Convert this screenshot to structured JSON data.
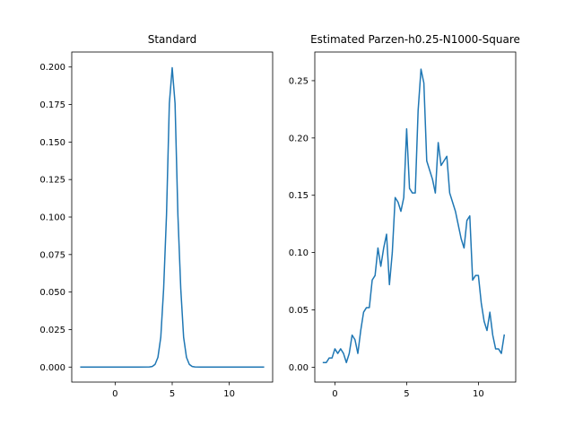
{
  "colors": {
    "line": "#1f77b4",
    "axes": "#000000",
    "background": "#ffffff"
  },
  "chart_data": [
    {
      "type": "line",
      "title": "Standard",
      "xlabel": "",
      "ylabel": "",
      "xlim": [
        -3.8,
        13.8
      ],
      "ylim": [
        -0.01,
        0.21
      ],
      "xticks": [
        0,
        5,
        10
      ],
      "xtick_labels": [
        "0",
        "5",
        "10"
      ],
      "yticks": [
        0.0,
        0.025,
        0.05,
        0.075,
        0.1,
        0.125,
        0.15,
        0.175,
        0.2
      ],
      "ytick_labels": [
        "0.000",
        "0.025",
        "0.050",
        "0.075",
        "0.100",
        "0.125",
        "0.150",
        "0.175",
        "0.200"
      ],
      "grid": false,
      "series": [
        {
          "x": [
            -3,
            -2,
            -1,
            0,
            1,
            2,
            3,
            3.25,
            3.5,
            3.75,
            4,
            4.25,
            4.5,
            4.75,
            5,
            5.25,
            5.5,
            5.75,
            6,
            6.25,
            6.5,
            6.75,
            7,
            7.5,
            8,
            9,
            10,
            11,
            12,
            13
          ],
          "y": [
            0,
            0,
            0,
            0,
            0,
            0,
            0.0001,
            0.0004,
            0.0018,
            0.0065,
            0.0199,
            0.0522,
            0.1013,
            0.1757,
            0.1995,
            0.1757,
            0.1013,
            0.0522,
            0.0199,
            0.0065,
            0.0018,
            0.0004,
            0.0001,
            0,
            0,
            0,
            0,
            0,
            0,
            0
          ]
        }
      ]
    },
    {
      "type": "line",
      "title": "Estimated Parzen-h0.25-N1000-Square",
      "xlabel": "",
      "ylabel": "",
      "xlim": [
        -1.4,
        12.6
      ],
      "ylim": [
        -0.013,
        0.275
      ],
      "xticks": [
        0,
        5,
        10
      ],
      "xtick_labels": [
        "0",
        "5",
        "10"
      ],
      "yticks": [
        0.0,
        0.05,
        0.1,
        0.15,
        0.2,
        0.25
      ],
      "ytick_labels": [
        "0.00",
        "0.05",
        "0.10",
        "0.15",
        "0.20",
        "0.25"
      ],
      "grid": false,
      "series": [
        {
          "x": [
            -0.8,
            -0.6,
            -0.4,
            -0.2,
            0,
            0.2,
            0.4,
            0.6,
            0.8,
            1.0,
            1.2,
            1.4,
            1.6,
            1.8,
            2.0,
            2.2,
            2.4,
            2.6,
            2.8,
            3.0,
            3.2,
            3.4,
            3.6,
            3.8,
            4.0,
            4.2,
            4.4,
            4.6,
            4.8,
            5.0,
            5.2,
            5.4,
            5.6,
            5.8,
            6.0,
            6.2,
            6.4,
            6.6,
            6.8,
            7.0,
            7.2,
            7.4,
            7.6,
            7.8,
            8.0,
            8.2,
            8.4,
            8.6,
            8.8,
            9.0,
            9.2,
            9.4,
            9.6,
            9.8,
            10.0,
            10.2,
            10.4,
            10.6,
            10.8,
            11.0,
            11.2,
            11.4,
            11.6,
            11.8
          ],
          "y": [
            0.004,
            0.004,
            0.008,
            0.008,
            0.016,
            0.012,
            0.016,
            0.012,
            0.004,
            0.012,
            0.028,
            0.024,
            0.012,
            0.032,
            0.048,
            0.052,
            0.052,
            0.076,
            0.08,
            0.104,
            0.088,
            0.104,
            0.116,
            0.072,
            0.1,
            0.148,
            0.144,
            0.136,
            0.148,
            0.208,
            0.156,
            0.152,
            0.152,
            0.224,
            0.26,
            0.248,
            0.18,
            0.172,
            0.164,
            0.152,
            0.196,
            0.176,
            0.18,
            0.184,
            0.152,
            0.144,
            0.136,
            0.124,
            0.112,
            0.104,
            0.128,
            0.132,
            0.076,
            0.08,
            0.08,
            0.056,
            0.04,
            0.032,
            0.048,
            0.028,
            0.016,
            0.016,
            0.012,
            0.028
          ]
        }
      ]
    }
  ]
}
